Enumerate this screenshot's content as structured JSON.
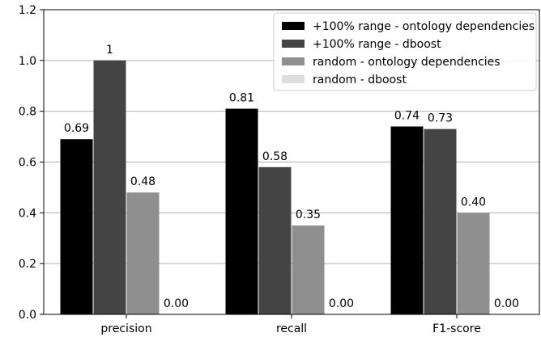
{
  "chart_data": {
    "type": "bar",
    "categories": [
      "precision",
      "recall",
      "F1-score"
    ],
    "series": [
      {
        "name": "+100% range - ontology dependencies",
        "color": "#000000",
        "values": [
          0.69,
          0.81,
          0.74
        ],
        "labels": [
          "0.69",
          "0.81",
          "0.74"
        ]
      },
      {
        "name": "+100% range - dboost",
        "color": "#444444",
        "values": [
          1.0,
          0.58,
          0.73
        ],
        "labels": [
          "1",
          "0.58",
          "0.73"
        ]
      },
      {
        "name": "random - ontology dependencies",
        "color": "#8f8f8f",
        "values": [
          0.48,
          0.35,
          0.4
        ],
        "labels": [
          "0.48",
          "0.35",
          "0.40"
        ]
      },
      {
        "name": "random - dboost",
        "color": "#dddddd",
        "values": [
          0.0,
          0.0,
          0.0
        ],
        "labels": [
          "0.00",
          "0.00",
          "0.00"
        ]
      }
    ],
    "yticks": [
      "0.0",
      "0.2",
      "0.4",
      "0.6",
      "0.8",
      "1.0",
      "1.2"
    ],
    "ylim": [
      0,
      1.2
    ],
    "grid": "horizontal",
    "legend_position": "top-right",
    "title": "",
    "xlabel": "",
    "ylabel": ""
  }
}
